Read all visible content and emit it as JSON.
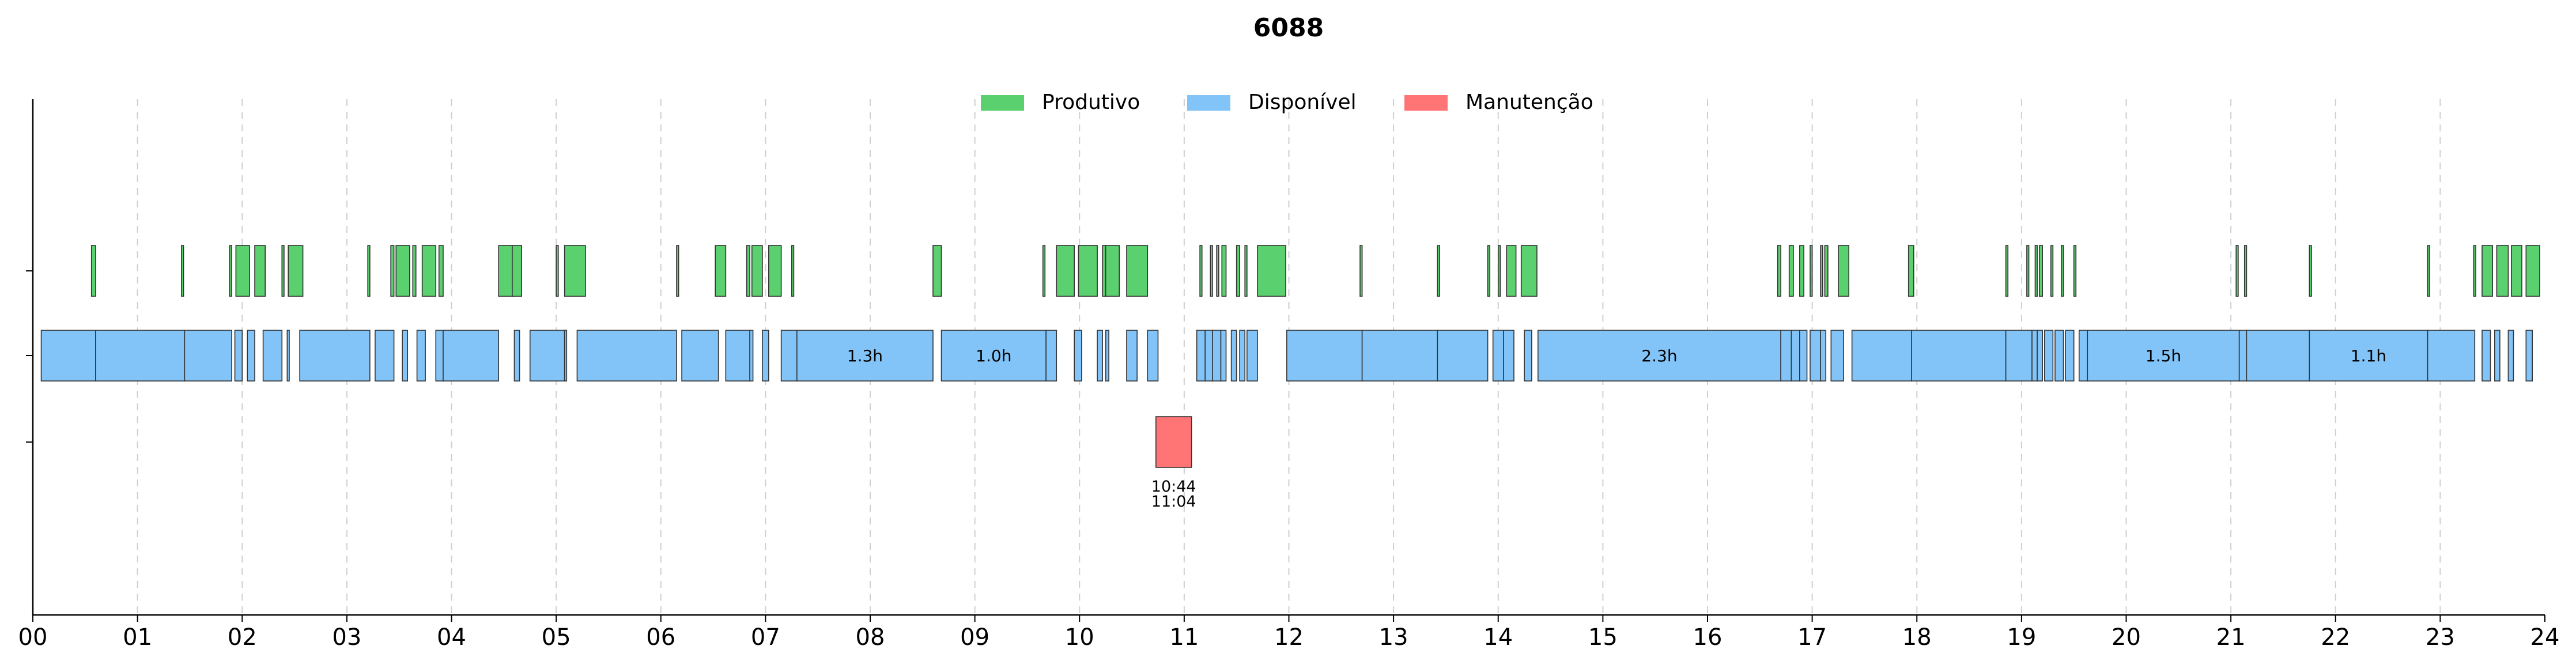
{
  "chart_data": {
    "type": "timeline",
    "title": "6088",
    "xlabel": "",
    "ylabel": "",
    "xlim": [
      0,
      24
    ],
    "grid": "vertical dashed",
    "legend_position": "top-center",
    "x_tick_labels": [
      "00",
      "01",
      "02",
      "03",
      "04",
      "05",
      "06",
      "07",
      "08",
      "09",
      "10",
      "11",
      "12",
      "13",
      "14",
      "15",
      "16",
      "17",
      "18",
      "19",
      "20",
      "21",
      "22",
      "23",
      "24"
    ],
    "lanes": [
      "Produtivo",
      "Disponível",
      "Manutenção"
    ],
    "series": [
      {
        "name": "Produtivo",
        "color": "#5ad06e",
        "intervals": [
          [
            0.56,
            0.6
          ],
          [
            1.42,
            1.44
          ],
          [
            1.88,
            1.9
          ],
          [
            1.94,
            2.07
          ],
          [
            2.12,
            2.22
          ],
          [
            2.38,
            2.4
          ],
          [
            2.44,
            2.58
          ],
          [
            3.2,
            3.22
          ],
          [
            3.42,
            3.45
          ],
          [
            3.47,
            3.6
          ],
          [
            3.63,
            3.66
          ],
          [
            3.72,
            3.85
          ],
          [
            3.88,
            3.92
          ],
          [
            4.45,
            4.58
          ],
          [
            4.58,
            4.67
          ],
          [
            5.0,
            5.02
          ],
          [
            5.08,
            5.28
          ],
          [
            6.15,
            6.17
          ],
          [
            6.52,
            6.62
          ],
          [
            6.82,
            6.85
          ],
          [
            6.87,
            6.97
          ],
          [
            7.03,
            7.15
          ],
          [
            7.25,
            7.27
          ],
          [
            8.6,
            8.68
          ],
          [
            9.65,
            9.67
          ],
          [
            9.78,
            9.95
          ],
          [
            9.99,
            10.17
          ],
          [
            10.22,
            10.25
          ],
          [
            10.25,
            10.38
          ],
          [
            10.45,
            10.65
          ],
          [
            11.15,
            11.17
          ],
          [
            11.25,
            11.27
          ],
          [
            11.31,
            11.33
          ],
          [
            11.36,
            11.4
          ],
          [
            11.5,
            11.53
          ],
          [
            11.58,
            11.6
          ],
          [
            11.7,
            11.97
          ],
          [
            12.68,
            12.7
          ],
          [
            13.42,
            13.44
          ],
          [
            13.9,
            13.92
          ],
          [
            14.0,
            14.02
          ],
          [
            14.08,
            14.17
          ],
          [
            14.22,
            14.37
          ],
          [
            16.67,
            16.7
          ],
          [
            16.78,
            16.82
          ],
          [
            16.88,
            16.92
          ],
          [
            16.98,
            17.0
          ],
          [
            17.08,
            17.1
          ],
          [
            17.12,
            17.15
          ],
          [
            17.25,
            17.35
          ],
          [
            17.92,
            17.97
          ],
          [
            18.85,
            18.87
          ],
          [
            19.05,
            19.07
          ],
          [
            19.13,
            19.15
          ],
          [
            19.17,
            19.2
          ],
          [
            19.28,
            19.3
          ],
          [
            19.38,
            19.4
          ],
          [
            19.5,
            19.52
          ],
          [
            21.05,
            21.07
          ],
          [
            21.13,
            21.15
          ],
          [
            21.75,
            21.77
          ],
          [
            22.88,
            22.9
          ],
          [
            23.32,
            23.34
          ],
          [
            23.4,
            23.5
          ],
          [
            23.54,
            23.65
          ],
          [
            23.68,
            23.78
          ],
          [
            23.82,
            23.95
          ]
        ]
      },
      {
        "name": "Disponível",
        "color": "#82c4f8",
        "intervals": [
          [
            0.08,
            0.6
          ],
          [
            0.6,
            1.45
          ],
          [
            1.45,
            1.9
          ],
          [
            1.93,
            2.0
          ],
          [
            2.05,
            2.12
          ],
          [
            2.2,
            2.38
          ],
          [
            2.43,
            2.45
          ],
          [
            2.55,
            3.22
          ],
          [
            3.27,
            3.45
          ],
          [
            3.53,
            3.58
          ],
          [
            3.67,
            3.75
          ],
          [
            3.85,
            3.92
          ],
          [
            3.92,
            4.45
          ],
          [
            4.6,
            4.65
          ],
          [
            4.75,
            5.08
          ],
          [
            5.08,
            5.1
          ],
          [
            5.2,
            6.15
          ],
          [
            6.2,
            6.55
          ],
          [
            6.62,
            6.85
          ],
          [
            6.85,
            6.88
          ],
          [
            6.97,
            7.03
          ],
          [
            7.15,
            7.3
          ],
          {
            "x": [
              7.3,
              8.6
            ],
            "label": "1.3h"
          },
          {
            "x": [
              8.68,
              9.68
            ],
            "label": "1.0h"
          },
          [
            9.68,
            9.78
          ],
          [
            9.95,
            10.02
          ],
          [
            10.17,
            10.22
          ],
          [
            10.25,
            10.28
          ],
          [
            10.45,
            10.55
          ],
          [
            10.65,
            10.75
          ],
          [
            11.12,
            11.2
          ],
          [
            11.2,
            11.27
          ],
          [
            11.27,
            11.35
          ],
          [
            11.35,
            11.4
          ],
          [
            11.45,
            11.5
          ],
          [
            11.53,
            11.58
          ],
          [
            11.6,
            11.7
          ],
          [
            11.98,
            12.7
          ],
          [
            12.7,
            13.42
          ],
          [
            13.42,
            13.9
          ],
          [
            13.95,
            14.05
          ],
          [
            14.05,
            14.15
          ],
          [
            14.25,
            14.32
          ],
          {
            "x": [
              14.38,
              16.7
            ],
            "label": "2.3h"
          },
          [
            16.7,
            16.8
          ],
          [
            16.8,
            16.88
          ],
          [
            16.88,
            16.95
          ],
          [
            16.98,
            17.08
          ],
          [
            17.08,
            17.13
          ],
          [
            17.18,
            17.3
          ],
          [
            17.38,
            17.95
          ],
          [
            17.95,
            18.85
          ],
          [
            18.85,
            19.1
          ],
          [
            19.1,
            19.15
          ],
          [
            19.15,
            19.2
          ],
          [
            19.22,
            19.3
          ],
          [
            19.32,
            19.4
          ],
          [
            19.42,
            19.5
          ],
          [
            19.55,
            19.63
          ],
          {
            "x": [
              19.63,
              21.08
            ],
            "label": "1.5h"
          },
          [
            21.08,
            21.15
          ],
          [
            21.15,
            21.75
          ],
          {
            "x": [
              21.75,
              22.88
            ],
            "label": "1.1h"
          },
          [
            22.88,
            23.33
          ],
          [
            23.4,
            23.48
          ],
          [
            23.52,
            23.57
          ],
          [
            23.65,
            23.7
          ],
          [
            23.82,
            23.88
          ]
        ]
      },
      {
        "name": "Manutenção",
        "color": "#ff7575",
        "intervals": [
          {
            "x": [
              10.73,
              11.07
            ],
            "label": "10:44\n11:04"
          }
        ]
      }
    ]
  }
}
